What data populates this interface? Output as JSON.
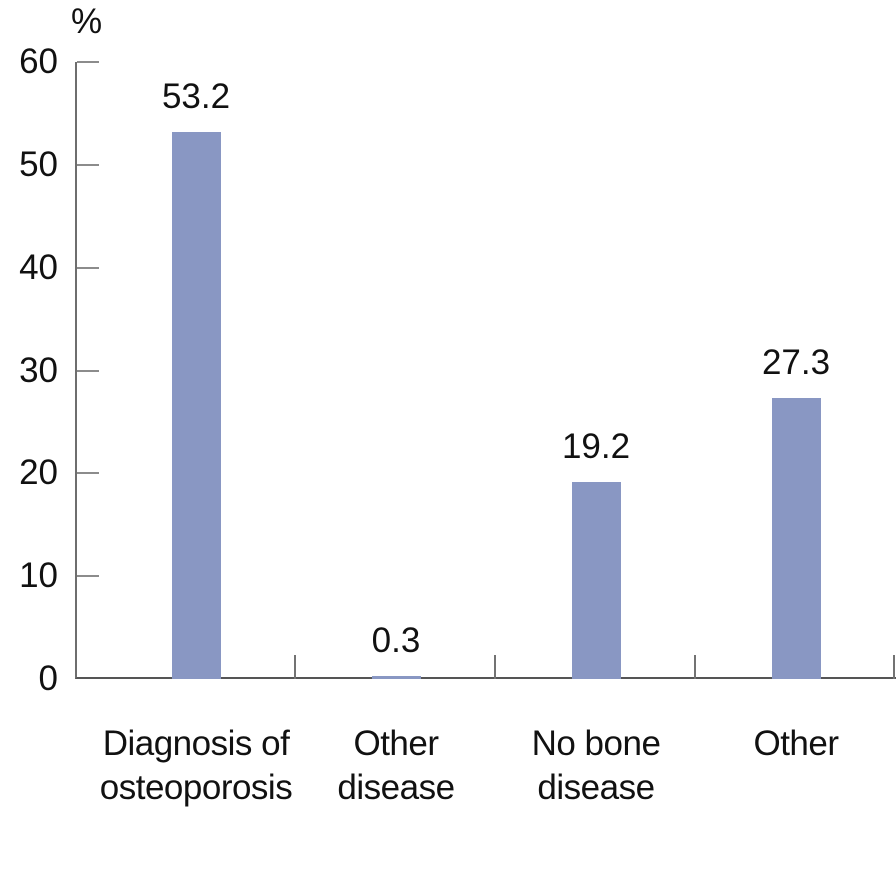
{
  "chart_data": {
    "type": "bar",
    "title": "",
    "unit_label": "%",
    "categories": [
      "Diagnosis of osteoporosis",
      "Other disease",
      "No bone disease",
      "Other"
    ],
    "category_label_lines": [
      [
        "Diagnosis of",
        "osteoporosis"
      ],
      [
        "Other",
        "disease"
      ],
      [
        "No bone",
        "disease"
      ],
      [
        "Other"
      ]
    ],
    "values": [
      53.2,
      0.3,
      19.2,
      27.3
    ],
    "value_labels": [
      "53.2",
      "0.3",
      "19.2",
      "27.3"
    ],
    "y_ticks": [
      0,
      10,
      20,
      30,
      40,
      50,
      60
    ],
    "ylim": [
      0,
      60
    ],
    "ylabel": "%",
    "xlabel": "",
    "grid": false,
    "legend": "none",
    "bar_color": "#8997c3",
    "axis_color": "#555555",
    "y_tick_color": "#8c8c8c",
    "category_tick_color": "#737373",
    "text_color": "#111111"
  }
}
